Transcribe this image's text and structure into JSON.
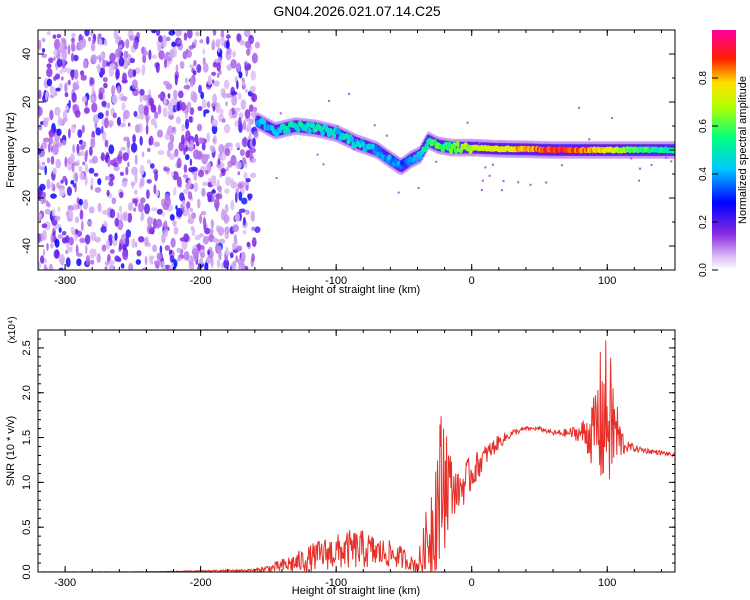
{
  "title": "GN04.2026.021.07.14.C25",
  "colors": {
    "accent_line": "#e8302a",
    "axis": "#000000",
    "background": "#ffffff"
  },
  "chart_data": [
    {
      "type": "heatmap",
      "title": "",
      "xlabel": "Height of straight line (km)",
      "ylabel": "Frequency (Hz)",
      "xlim": [
        -320,
        150
      ],
      "ylim": [
        -50,
        50
      ],
      "x_ticks": [
        -300,
        -200,
        -100,
        0,
        100
      ],
      "y_ticks": [
        -40,
        -20,
        0,
        20,
        40
      ],
      "colorbar": {
        "label": "Normalized spectral amplitude",
        "range": [
          0,
          1
        ],
        "ticks": [
          "0.0",
          "0.2",
          "0.4",
          "0.6",
          "0.8"
        ],
        "colormap": "rainbow (violet→blue→cyan→green→yellow→red→magenta)"
      },
      "noise_region": {
        "x_range": [
          -320,
          -158
        ],
        "amplitude": "low (0.05–0.25)"
      },
      "ridge": {
        "description": "dominant frequency track",
        "x": [
          -158,
          -145,
          -130,
          -115,
          -100,
          -85,
          -70,
          -60,
          -52,
          -45,
          -38,
          -32,
          -25,
          -15,
          0,
          20,
          40,
          60,
          80,
          100,
          120,
          150
        ],
        "y": [
          12,
          8,
          10,
          9,
          7,
          3,
          0,
          -4,
          -7,
          -4,
          -2,
          4,
          2,
          1,
          1,
          0.5,
          0.3,
          0,
          0,
          0,
          0,
          0
        ],
        "amplitude": [
          0.4,
          0.45,
          0.5,
          0.5,
          0.45,
          0.45,
          0.4,
          0.4,
          0.35,
          0.4,
          0.45,
          0.55,
          0.6,
          0.6,
          0.7,
          0.75,
          0.8,
          0.9,
          0.85,
          0.75,
          0.6,
          0.5
        ]
      }
    },
    {
      "type": "line",
      "title": "",
      "xlabel": "Height of straight line (km)",
      "ylabel": "SNR (10 * v/v)",
      "y_multiplier": "(x10⁴)",
      "xlim": [
        -320,
        150
      ],
      "ylim": [
        0,
        2.7
      ],
      "x_ticks": [
        -300,
        -200,
        -100,
        0,
        100
      ],
      "y_ticks": [
        "0.0",
        "0.5",
        "1.0",
        "1.5",
        "2.0",
        "2.5"
      ],
      "series": [
        {
          "color": "#e8302a",
          "x": [
            -320,
            -250,
            -200,
            -160,
            -145,
            -130,
            -120,
            -110,
            -100,
            -90,
            -80,
            -70,
            -60,
            -50,
            -45,
            -40,
            -35,
            -30,
            -25,
            -20,
            -15,
            -10,
            -5,
            0,
            10,
            20,
            30,
            40,
            50,
            60,
            70,
            80,
            90,
            95,
            100,
            105,
            110,
            115,
            120,
            130,
            140,
            150
          ],
          "values": [
            0.0,
            0.0,
            0.01,
            0.02,
            0.05,
            0.1,
            0.15,
            0.2,
            0.22,
            0.25,
            0.25,
            0.22,
            0.2,
            0.15,
            0.1,
            0.08,
            0.2,
            0.5,
            0.8,
            1.1,
            0.95,
            0.9,
            1.0,
            1.1,
            1.3,
            1.45,
            1.55,
            1.6,
            1.6,
            1.55,
            1.55,
            1.55,
            1.55,
            1.7,
            1.75,
            1.6,
            1.45,
            1.4,
            1.38,
            1.35,
            1.33,
            1.3
          ],
          "spread": [
            0.003,
            0.003,
            0.006,
            0.015,
            0.06,
            0.12,
            0.15,
            0.18,
            0.2,
            0.22,
            0.22,
            0.18,
            0.15,
            0.12,
            0.08,
            0.1,
            0.35,
            0.6,
            0.9,
            0.85,
            0.35,
            0.2,
            0.25,
            0.2,
            0.12,
            0.08,
            0.04,
            0.02,
            0.02,
            0.03,
            0.05,
            0.1,
            0.4,
            0.8,
            0.9,
            0.6,
            0.2,
            0.06,
            0.04,
            0.03,
            0.025,
            0.02
          ]
        }
      ]
    }
  ]
}
